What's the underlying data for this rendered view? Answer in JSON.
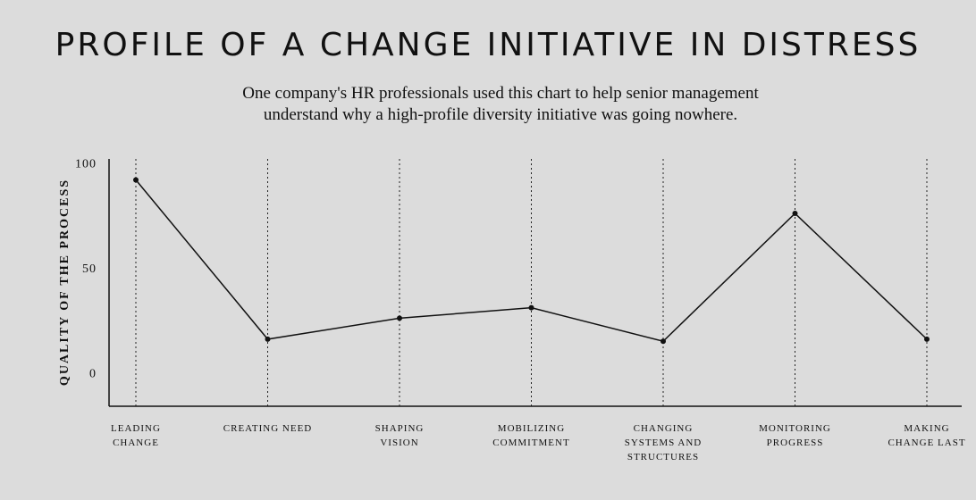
{
  "chart_data": {
    "type": "line",
    "title": "PROFILE OF A CHANGE INITIATIVE IN DISTRESS",
    "subtitle": [
      "One company's HR professionals used this chart to help senior management",
      "understand why a high-profile diversity initiative was going nowhere."
    ],
    "y_label": "QUALITY OF THE PROCESS",
    "categories": [
      "LEADING CHANGE",
      "CREATING NEED",
      "SHAPING VISION",
      "MOBILIZING COMMITMENT",
      "CHANGING SYSTEMS AND STRUCTURES",
      "MONITORING PROGRESS",
      "MAKING CHANGE LAST"
    ],
    "values": [
      92,
      16,
      26,
      31,
      15,
      76,
      16
    ],
    "color": "#111111",
    "ylim": [
      -16,
      102
    ],
    "yticks": [
      0,
      50,
      100
    ],
    "category_lines": true
  }
}
